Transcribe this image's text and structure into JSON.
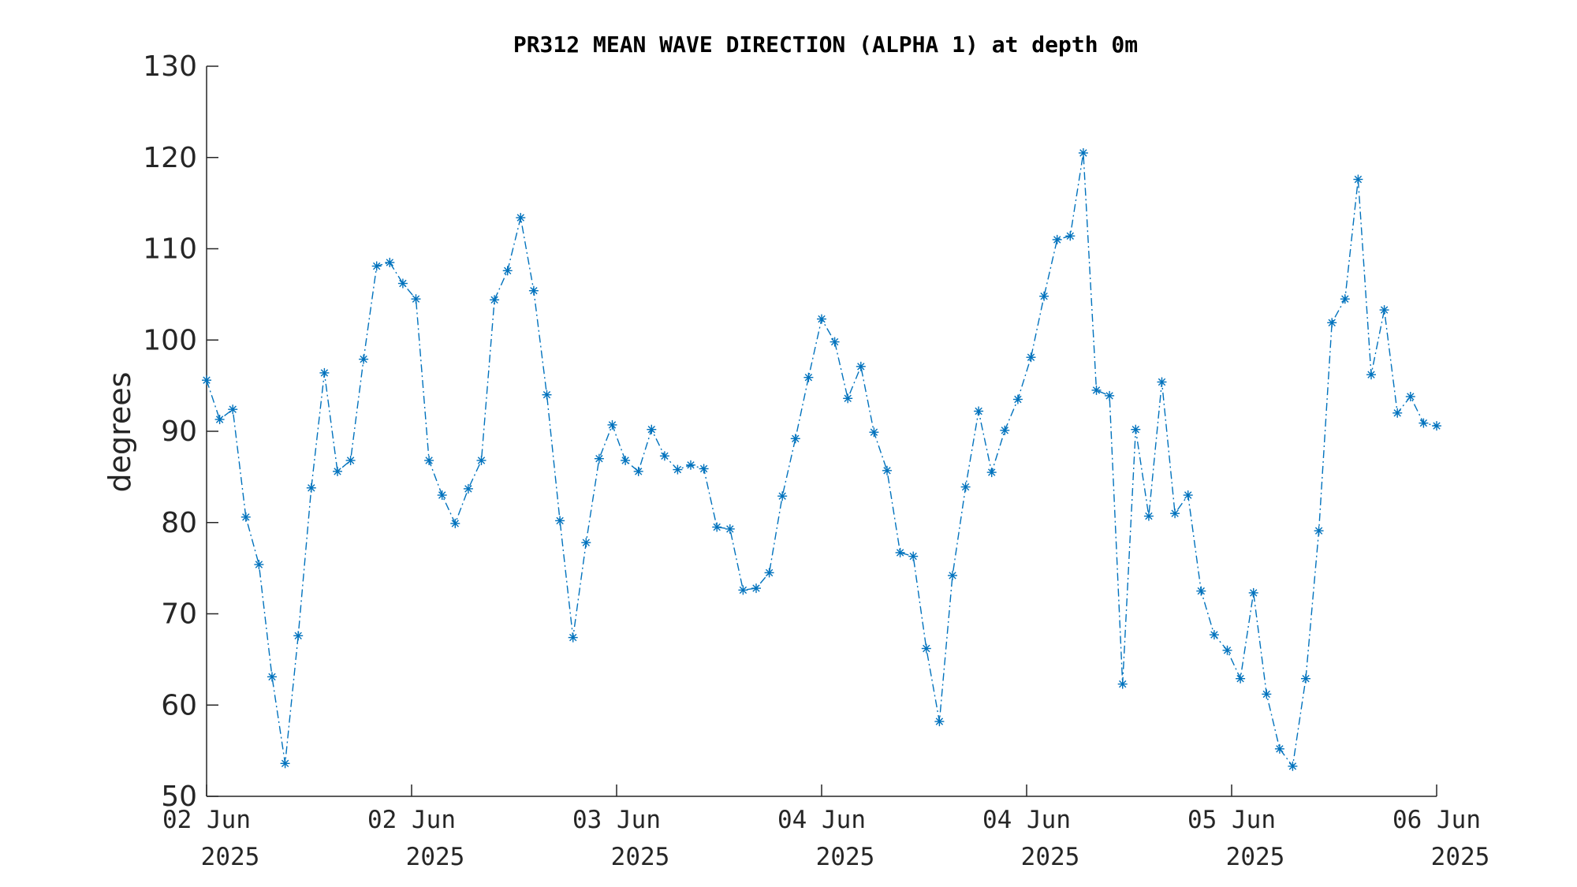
{
  "chart_data": {
    "type": "line",
    "title": "PR312 MEAN WAVE DIRECTION (ALPHA 1) at depth 0m",
    "xlabel": "",
    "ylabel": "degrees",
    "ylim": [
      50,
      130
    ],
    "yticks": [
      50,
      60,
      70,
      80,
      90,
      100,
      110,
      120,
      130
    ],
    "xlim": [
      "2025-06-02T00:00",
      "2025-06-06T00:00"
    ],
    "xtick_labels": [
      {
        "day": "02 Jun",
        "year": "2025"
      },
      {
        "day": "02 Jun",
        "year": "2025"
      },
      {
        "day": "03 Jun",
        "year": "2025"
      },
      {
        "day": "04 Jun",
        "year": "2025"
      },
      {
        "day": "04 Jun",
        "year": "2025"
      },
      {
        "day": "05 Jun",
        "year": "2025"
      },
      {
        "day": "06 Jun",
        "year": "2025"
      }
    ],
    "grid": false,
    "line_style": "dash-dot",
    "marker": "asterisk",
    "color": "#0072BD",
    "series": [
      {
        "values": [
          95.6,
          91.3,
          92.4,
          80.6,
          75.4,
          63.1,
          53.6,
          67.6,
          83.8,
          96.4,
          85.6,
          86.8,
          97.9,
          108.1,
          108.5,
          106.2,
          104.5,
          86.8,
          83.0,
          79.9,
          83.7,
          86.8,
          104.4,
          107.6,
          113.4,
          105.4,
          94.0,
          80.2,
          67.4,
          77.8,
          87.0,
          90.7,
          86.8,
          85.6,
          90.2,
          87.3,
          85.8,
          86.3,
          85.9,
          79.5,
          79.3,
          72.6,
          72.8,
          74.5,
          82.9,
          89.2,
          95.9,
          102.3,
          99.8,
          93.6,
          97.1,
          89.9,
          85.7,
          76.7,
          76.3,
          66.2,
          58.2,
          74.2,
          83.9,
          92.2,
          85.5,
          90.1,
          93.5,
          98.1,
          104.8,
          111.0,
          111.4,
          120.5,
          94.5,
          93.9,
          62.3,
          90.2,
          80.7,
          95.4,
          81.0,
          83.0,
          72.5,
          67.7,
          66.0,
          62.9,
          72.3,
          61.2,
          55.2,
          53.3,
          62.9,
          79.1,
          101.9,
          104.5,
          117.6,
          96.2,
          103.3,
          92.0,
          93.8,
          90.9,
          90.6
        ]
      }
    ]
  }
}
